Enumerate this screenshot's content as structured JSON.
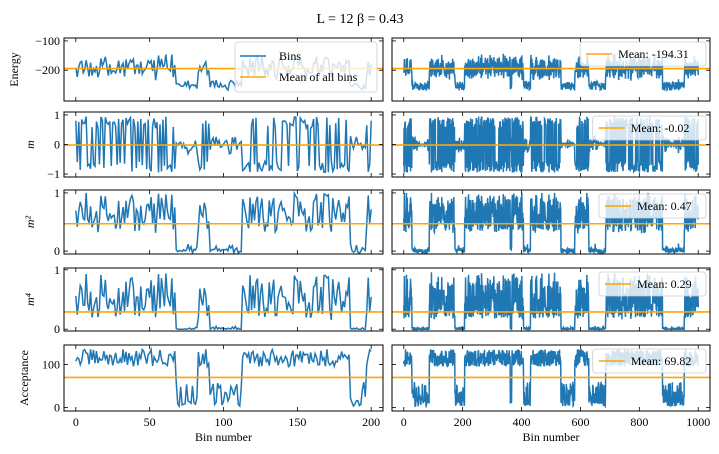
{
  "chart_data": {
    "type": "line",
    "title": "L = 12   β = 0.43",
    "colors": {
      "bins": "#1f77b4",
      "mean": "#ffa500"
    },
    "columns": [
      {
        "xlabel": "Bin number",
        "xlim": [
          -8,
          208
        ],
        "xticks": [
          0,
          50,
          100,
          150,
          200
        ],
        "n_points": 201
      },
      {
        "xlabel": "Bin number",
        "xlim": [
          -40,
          1040
        ],
        "xticks": [
          0,
          200,
          400,
          600,
          800,
          1000
        ],
        "n_points": 1001
      }
    ],
    "rows": [
      {
        "ylabel": "Energy",
        "ylabel_italic": false,
        "ylim": [
          -305,
          -90
        ],
        "yticks": [
          -100,
          -200
        ],
        "ytick_labels": [
          "−100",
          "−200"
        ],
        "mean": -194.31,
        "range": [
          -270,
          -100
        ],
        "style": "energy"
      },
      {
        "ylabel": "m",
        "ylabel_italic": true,
        "ylim": [
          -1.1,
          1.1
        ],
        "yticks": [
          1,
          0,
          -1
        ],
        "ytick_labels": [
          "1",
          "0",
          "−1"
        ],
        "mean": -0.02,
        "range": [
          -1,
          1
        ],
        "style": "m"
      },
      {
        "ylabel": "m²",
        "ylabel_italic": true,
        "ylim": [
          -0.05,
          1.05
        ],
        "yticks": [
          1,
          0
        ],
        "ytick_labels": [
          "1",
          "0"
        ],
        "mean": 0.47,
        "range": [
          0,
          1
        ],
        "style": "m2"
      },
      {
        "ylabel": "m⁴",
        "ylabel_italic": true,
        "ylim": [
          -0.03,
          1.03
        ],
        "yticks": [
          1,
          0
        ],
        "ytick_labels": [
          "1",
          "0"
        ],
        "mean": 0.29,
        "range": [
          0,
          1
        ],
        "style": "m4"
      },
      {
        "ylabel": "Acceptance",
        "ylabel_italic": false,
        "ylim": [
          -8,
          145
        ],
        "yticks": [
          100,
          0
        ],
        "ytick_labels": [
          "100",
          "0"
        ],
        "mean": 69.82,
        "range": [
          0,
          140
        ],
        "style": "acc"
      }
    ],
    "legends": {
      "left_top": [
        "Bins",
        "Mean of all bins"
      ],
      "right": [
        "Mean: -194.31",
        "Mean: -0.02",
        "Mean: 0.47",
        "Mean: 0.29",
        "Mean: 69.82"
      ]
    }
  }
}
